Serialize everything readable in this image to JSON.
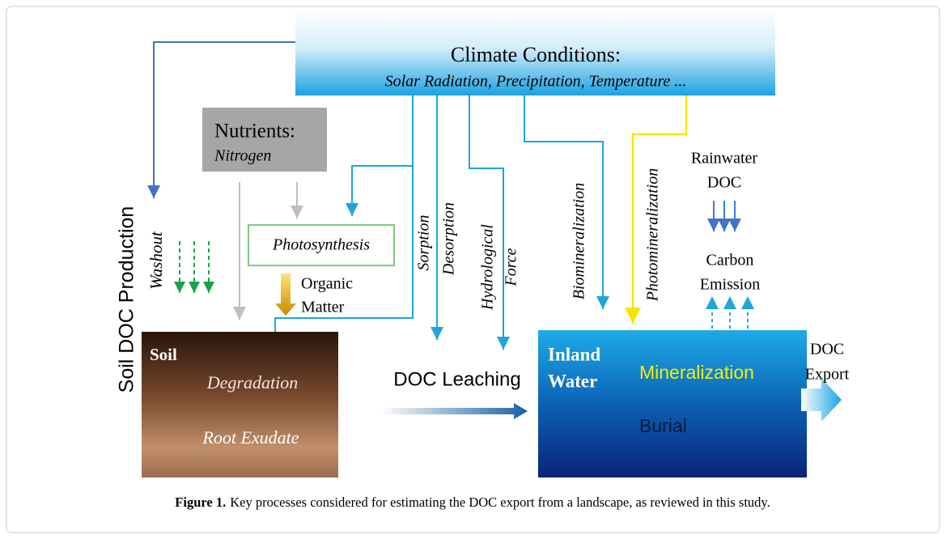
{
  "climate": {
    "title": "Climate Conditions:",
    "subtitle": "Solar Radiation, Precipitation, Temperature ..."
  },
  "nutrients": {
    "title": "Nutrients:",
    "subtitle": "Nitrogen"
  },
  "side_label": "Soil DOC Production",
  "washout": "Washout",
  "photosynthesis": "Photosynthesis",
  "organic_matter": [
    "Organic",
    "Matter"
  ],
  "soil": {
    "title": "Soil",
    "processes": [
      "Degradation",
      "Root Exudate"
    ]
  },
  "fluxes": [
    "Sorption",
    "Desorption",
    "Hydrological",
    "Force",
    "Biomineralization",
    "Photomineralization"
  ],
  "rainwater": [
    "Rainwater",
    "DOC"
  ],
  "carbon_emission": [
    "Carbon",
    "Emission"
  ],
  "leaching": "DOC Leaching",
  "inland_water": {
    "title": [
      "Inland",
      "Water"
    ],
    "processes": [
      "Mineralization",
      "Burial"
    ]
  },
  "export": [
    "DOC",
    "Export"
  ],
  "caption": {
    "label": "Figure 1.",
    "text": "Key processes considered for estimating the DOC export from a landscape, as reviewed in this study."
  }
}
